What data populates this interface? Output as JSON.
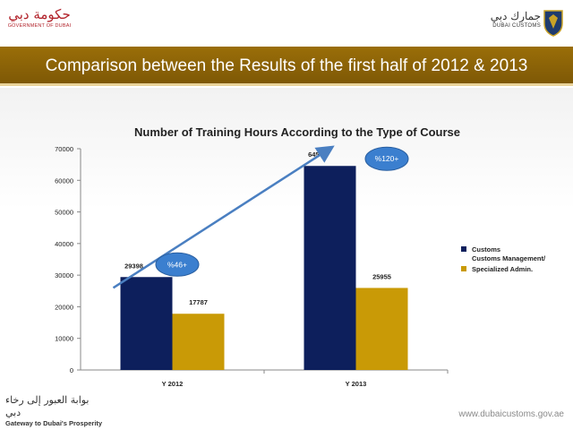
{
  "header": {
    "gov_logo_ar": "حكومة دبي",
    "gov_logo_en": "GOVERNMENT OF DUBAI",
    "customs_logo_ar": "جمارك دبي",
    "customs_logo_en": "DUBAI CUSTOMS"
  },
  "slide_title": "Comparison between the Results of the first half of 2012 & 2013",
  "colors": {
    "title_bar": "#8a6207",
    "series_customs": "#0d1f5c",
    "series_specialized": "#c99a06",
    "growth_arrow": "#4a7fc1",
    "badge": "#3b7fcf"
  },
  "chart_data": {
    "type": "bar",
    "title": "Number of Training Hours According to the Type of Course",
    "categories": [
      "Y 2012",
      "Y 2013"
    ],
    "series": [
      {
        "name": "Customs Management/",
        "values": [
          29398,
          64548
        ]
      },
      {
        "name": "Specialized Admin.",
        "values": [
          17787,
          25955
        ]
      }
    ],
    "ylim": [
      0,
      70000
    ],
    "yticks": [
      0,
      10000,
      20000,
      30000,
      40000,
      50000,
      60000,
      70000
    ],
    "legend_position": "right",
    "grid": false,
    "annotations": [
      {
        "text": "%46+",
        "category": "Y 2012"
      },
      {
        "text": "%120+",
        "category": "Y 2013"
      }
    ]
  },
  "footer": {
    "tagline_ar": "بوابة العبور إلى رخاء دبي",
    "tagline_en": "Gateway to Dubai's Prosperity",
    "website": "www.dubaicustoms.gov.ae"
  }
}
